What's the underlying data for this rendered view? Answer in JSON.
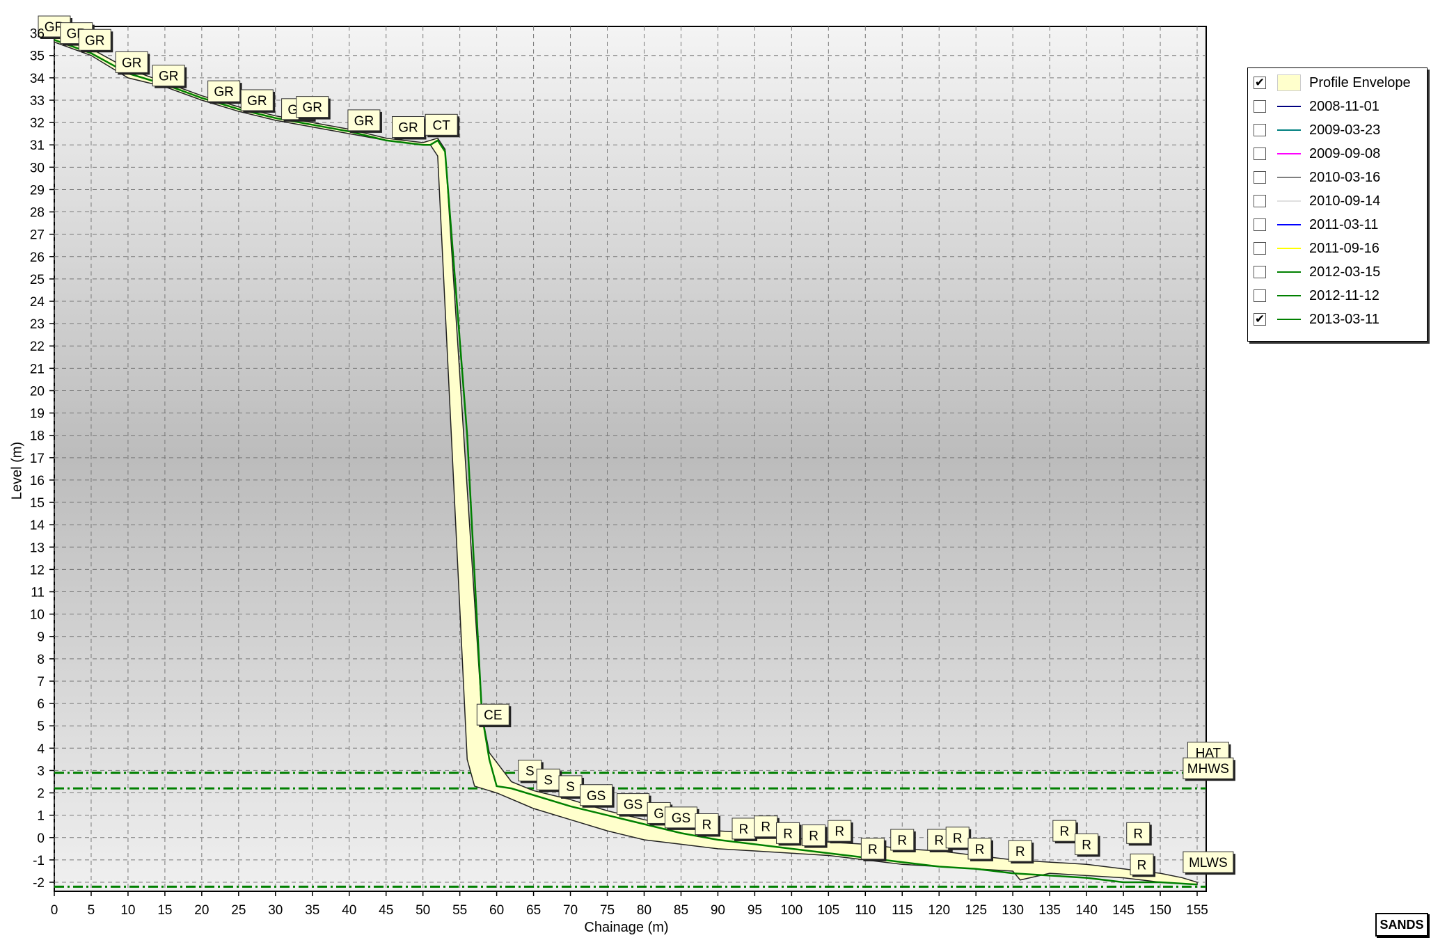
{
  "logo_text": "SANDS",
  "chart_data": {
    "type": "line",
    "xlabel": "Chainage (m)",
    "ylabel": "Level (m)",
    "xlim": [
      0,
      155
    ],
    "ylim": [
      -2,
      36
    ],
    "x_ticks": [
      0,
      5,
      10,
      15,
      20,
      25,
      30,
      35,
      40,
      45,
      50,
      55,
      60,
      65,
      70,
      75,
      80,
      85,
      90,
      95,
      100,
      105,
      110,
      115,
      120,
      125,
      130,
      135,
      140,
      145,
      150,
      155
    ],
    "y_ticks": [
      -2,
      -1,
      0,
      1,
      2,
      3,
      4,
      5,
      6,
      7,
      8,
      9,
      10,
      11,
      12,
      13,
      14,
      15,
      16,
      17,
      18,
      19,
      20,
      21,
      22,
      23,
      24,
      25,
      26,
      27,
      28,
      29,
      30,
      31,
      32,
      33,
      34,
      35
    ],
    "y_top_tick_label": "36",
    "grid": true,
    "legend_position": "right",
    "legend": [
      {
        "label": "Profile Envelope",
        "checked": true,
        "swatch": "box",
        "color": "#ffffcc"
      },
      {
        "label": "2008-11-01",
        "checked": false,
        "swatch": "line",
        "color": "#000080"
      },
      {
        "label": "2009-03-23",
        "checked": false,
        "swatch": "line",
        "color": "#008080"
      },
      {
        "label": "2009-09-08",
        "checked": false,
        "swatch": "line",
        "color": "#ff00ff"
      },
      {
        "label": "2010-03-16",
        "checked": false,
        "swatch": "line",
        "color": "#808080"
      },
      {
        "label": "2010-09-14",
        "checked": false,
        "swatch": "line",
        "color": "#e0e0e0"
      },
      {
        "label": "2011-03-11",
        "checked": false,
        "swatch": "line",
        "color": "#0000ff"
      },
      {
        "label": "2011-09-16",
        "checked": false,
        "swatch": "line",
        "color": "#ffff00"
      },
      {
        "label": "2012-03-15",
        "checked": false,
        "swatch": "line",
        "color": "#008000"
      },
      {
        "label": "2012-11-12",
        "checked": false,
        "swatch": "line",
        "color": "#008000"
      },
      {
        "label": "2013-03-11",
        "checked": true,
        "swatch": "line",
        "color": "#008000"
      }
    ],
    "envelope": {
      "color": "#ffffcc",
      "upper": [
        [
          0,
          35.9
        ],
        [
          5,
          35.3
        ],
        [
          10,
          34.4
        ],
        [
          15,
          33.8
        ],
        [
          20,
          33.2
        ],
        [
          25,
          32.7
        ],
        [
          30,
          32.3
        ],
        [
          35,
          32.0
        ],
        [
          40,
          31.7
        ],
        [
          45,
          31.3
        ],
        [
          50,
          31.1
        ],
        [
          52,
          31.3
        ],
        [
          53,
          30.8
        ],
        [
          58,
          5.5
        ],
        [
          59,
          3.8
        ],
        [
          62,
          2.5
        ],
        [
          65,
          2.1
        ],
        [
          70,
          1.7
        ],
        [
          75,
          1.2
        ],
        [
          80,
          0.8
        ],
        [
          85,
          0.5
        ],
        [
          90,
          0.3
        ],
        [
          95,
          0.2
        ],
        [
          100,
          0.0
        ],
        [
          105,
          -0.2
        ],
        [
          110,
          -0.3
        ],
        [
          115,
          -0.5
        ],
        [
          120,
          -0.6
        ],
        [
          125,
          -0.8
        ],
        [
          130,
          -1.0
        ],
        [
          135,
          -1.1
        ],
        [
          140,
          -1.2
        ],
        [
          145,
          -1.4
        ],
        [
          150,
          -1.6
        ],
        [
          153,
          -1.8
        ],
        [
          155,
          -2.0
        ]
      ],
      "lower": [
        [
          155,
          -2.1
        ],
        [
          150,
          -2.0
        ],
        [
          145,
          -1.8
        ],
        [
          140,
          -1.7
        ],
        [
          135,
          -1.6
        ],
        [
          131,
          -1.9
        ],
        [
          130,
          -1.5
        ],
        [
          125,
          -1.4
        ],
        [
          120,
          -1.3
        ],
        [
          115,
          -1.2
        ],
        [
          110,
          -1.0
        ],
        [
          105,
          -0.8
        ],
        [
          100,
          -0.7
        ],
        [
          95,
          -0.6
        ],
        [
          90,
          -0.5
        ],
        [
          85,
          -0.3
        ],
        [
          80,
          -0.1
        ],
        [
          75,
          0.3
        ],
        [
          70,
          0.8
        ],
        [
          65,
          1.3
        ],
        [
          60,
          2.0
        ],
        [
          57,
          2.3
        ],
        [
          56,
          3.5
        ],
        [
          52,
          30.5
        ],
        [
          51,
          31.0
        ],
        [
          50,
          31.0
        ],
        [
          45,
          31.2
        ],
        [
          40,
          31.5
        ],
        [
          35,
          31.8
        ],
        [
          30,
          32.1
        ],
        [
          25,
          32.5
        ],
        [
          20,
          33.0
        ],
        [
          15,
          33.6
        ],
        [
          10,
          34.0
        ],
        [
          5,
          35.0
        ],
        [
          0,
          35.6
        ]
      ]
    },
    "series": [
      {
        "name": "2013-03-11",
        "color": "#008000",
        "x": [
          0,
          5,
          10,
          15,
          20,
          25,
          30,
          35,
          40,
          45,
          50,
          51,
          52,
          53,
          56,
          58,
          59,
          60,
          62,
          65,
          70,
          75,
          80,
          85,
          90,
          95,
          100,
          105,
          110,
          115,
          120,
          125,
          130,
          135,
          140,
          145,
          150,
          155
        ],
        "y": [
          35.7,
          35.1,
          34.2,
          33.7,
          33.1,
          32.6,
          32.2,
          31.9,
          31.6,
          31.2,
          31.0,
          31.0,
          31.2,
          30.7,
          18.0,
          5.5,
          3.5,
          2.3,
          2.2,
          1.9,
          1.4,
          1.0,
          0.6,
          0.2,
          -0.1,
          -0.3,
          -0.5,
          -0.7,
          -0.9,
          -1.1,
          -1.3,
          -1.4,
          -1.6,
          -1.7,
          -1.8,
          -2.0,
          -2.0,
          -2.1
        ]
      }
    ],
    "reference_lines": [
      {
        "y": 2.9,
        "color": "#008000",
        "style": "dashdot"
      },
      {
        "y": 2.2,
        "color": "#008000",
        "style": "dashdot"
      },
      {
        "y": -2.2,
        "color": "#008000",
        "style": "dashdot"
      }
    ],
    "annotations": [
      {
        "x": 0,
        "y": 36.3,
        "text": "GR"
      },
      {
        "x": 3,
        "y": 36.0,
        "text": "GR"
      },
      {
        "x": 5.5,
        "y": 35.7,
        "text": "GR"
      },
      {
        "x": 10.5,
        "y": 34.7,
        "text": "GR"
      },
      {
        "x": 15.5,
        "y": 34.1,
        "text": "GR"
      },
      {
        "x": 23,
        "y": 33.4,
        "text": "GR"
      },
      {
        "x": 27.5,
        "y": 33.0,
        "text": "GR"
      },
      {
        "x": 33,
        "y": 32.6,
        "text": "GR"
      },
      {
        "x": 35,
        "y": 32.7,
        "text": "GR"
      },
      {
        "x": 42,
        "y": 32.1,
        "text": "GR"
      },
      {
        "x": 48,
        "y": 31.8,
        "text": "GR"
      },
      {
        "x": 52.5,
        "y": 31.9,
        "text": "CT"
      },
      {
        "x": 59.5,
        "y": 5.5,
        "text": "CE"
      },
      {
        "x": 64.5,
        "y": 3.0,
        "text": "S"
      },
      {
        "x": 67,
        "y": 2.6,
        "text": "S"
      },
      {
        "x": 70,
        "y": 2.3,
        "text": "S"
      },
      {
        "x": 73.5,
        "y": 1.9,
        "text": "GS"
      },
      {
        "x": 78.5,
        "y": 1.5,
        "text": "GS"
      },
      {
        "x": 82,
        "y": 1.1,
        "text": "G"
      },
      {
        "x": 85,
        "y": 0.9,
        "text": "GS"
      },
      {
        "x": 88.5,
        "y": 0.6,
        "text": "R"
      },
      {
        "x": 93.5,
        "y": 0.4,
        "text": "R"
      },
      {
        "x": 96.5,
        "y": 0.5,
        "text": "R"
      },
      {
        "x": 99.5,
        "y": 0.2,
        "text": "R"
      },
      {
        "x": 103,
        "y": 0.1,
        "text": "R"
      },
      {
        "x": 106.5,
        "y": 0.3,
        "text": "R"
      },
      {
        "x": 111,
        "y": -0.5,
        "text": "R"
      },
      {
        "x": 115,
        "y": -0.1,
        "text": "R"
      },
      {
        "x": 120,
        "y": -0.1,
        "text": "R"
      },
      {
        "x": 122.5,
        "y": 0.0,
        "text": "R"
      },
      {
        "x": 125.5,
        "y": -0.5,
        "text": "R"
      },
      {
        "x": 131,
        "y": -0.6,
        "text": "R"
      },
      {
        "x": 137,
        "y": 0.3,
        "text": "R"
      },
      {
        "x": 140,
        "y": -0.3,
        "text": "R"
      },
      {
        "x": 147,
        "y": 0.2,
        "text": "R"
      },
      {
        "x": 147.5,
        "y": -1.2,
        "text": "R"
      },
      {
        "x": 156.5,
        "y": 3.8,
        "text": "HAT"
      },
      {
        "x": 156.5,
        "y": 3.1,
        "text": "MHWS"
      },
      {
        "x": 156.5,
        "y": -1.1,
        "text": "MLWS"
      }
    ]
  }
}
